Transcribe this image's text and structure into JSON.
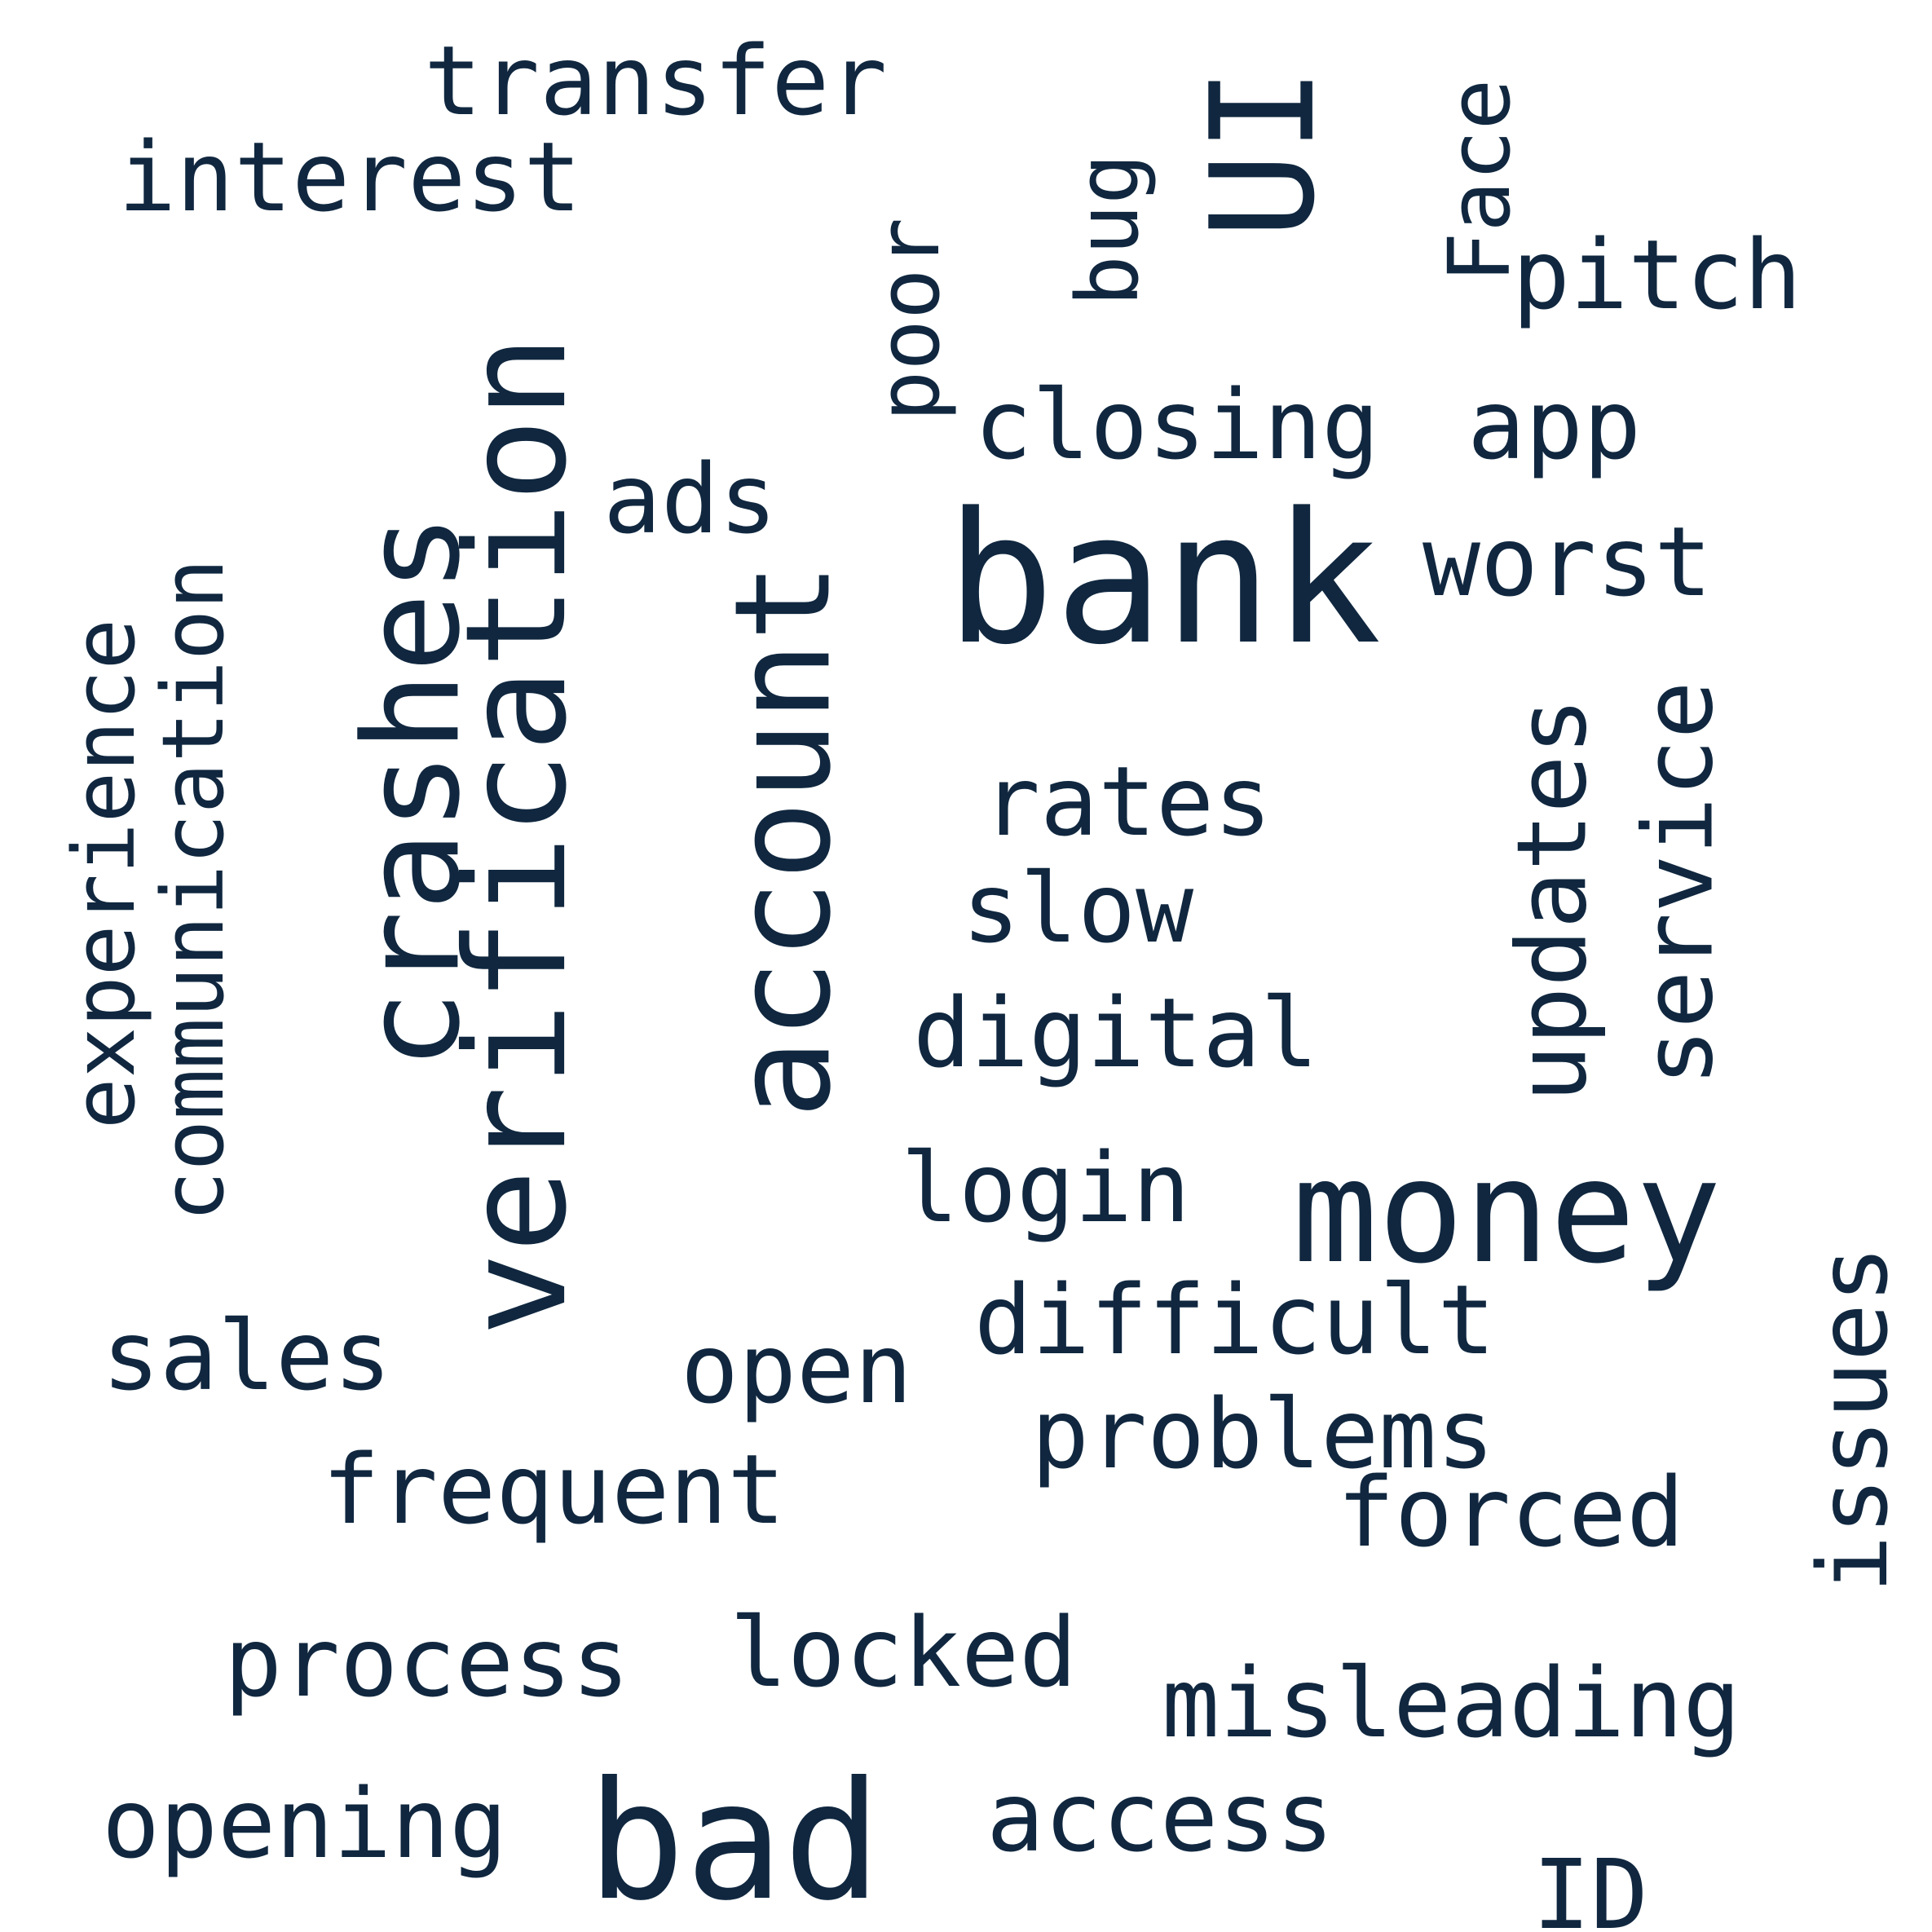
{
  "colors": {
    "text": "#10273f",
    "background": "#ffffff"
  },
  "words": [
    {
      "text": "bank",
      "weight": 100,
      "orientation": "horizontal"
    },
    {
      "text": "verification",
      "weight": 92,
      "orientation": "vertical"
    },
    {
      "text": "account",
      "weight": 88,
      "orientation": "vertical"
    },
    {
      "text": "crashes",
      "weight": 86,
      "orientation": "vertical"
    },
    {
      "text": "money",
      "weight": 80,
      "orientation": "horizontal"
    },
    {
      "text": "bad",
      "weight": 80,
      "orientation": "horizontal"
    },
    {
      "text": "UI",
      "weight": 78,
      "orientation": "vertical"
    },
    {
      "text": "experience",
      "weight": 55,
      "orientation": "vertical"
    },
    {
      "text": "communication",
      "weight": 55,
      "orientation": "vertical"
    },
    {
      "text": "transfer",
      "weight": 55,
      "orientation": "horizontal"
    },
    {
      "text": "interest",
      "weight": 55,
      "orientation": "horizontal"
    },
    {
      "text": "poor",
      "weight": 55,
      "orientation": "vertical"
    },
    {
      "text": "bug",
      "weight": 55,
      "orientation": "vertical"
    },
    {
      "text": "Face",
      "weight": 55,
      "orientation": "vertical"
    },
    {
      "text": "pitch",
      "weight": 55,
      "orientation": "horizontal"
    },
    {
      "text": "closing",
      "weight": 55,
      "orientation": "horizontal"
    },
    {
      "text": "app",
      "weight": 55,
      "orientation": "horizontal"
    },
    {
      "text": "ads",
      "weight": 55,
      "orientation": "horizontal"
    },
    {
      "text": "worst",
      "weight": 55,
      "orientation": "horizontal"
    },
    {
      "text": "rates",
      "weight": 55,
      "orientation": "horizontal"
    },
    {
      "text": "slow",
      "weight": 55,
      "orientation": "horizontal"
    },
    {
      "text": "updates",
      "weight": 55,
      "orientation": "vertical"
    },
    {
      "text": "service",
      "weight": 55,
      "orientation": "vertical"
    },
    {
      "text": "digital",
      "weight": 55,
      "orientation": "horizontal"
    },
    {
      "text": "login",
      "weight": 55,
      "orientation": "horizontal"
    },
    {
      "text": "issues",
      "weight": 55,
      "orientation": "vertical"
    },
    {
      "text": "difficult",
      "weight": 55,
      "orientation": "horizontal"
    },
    {
      "text": "sales",
      "weight": 55,
      "orientation": "horizontal"
    },
    {
      "text": "open",
      "weight": 55,
      "orientation": "horizontal"
    },
    {
      "text": "problems",
      "weight": 55,
      "orientation": "horizontal"
    },
    {
      "text": "frequent",
      "weight": 55,
      "orientation": "horizontal"
    },
    {
      "text": "forced",
      "weight": 55,
      "orientation": "horizontal"
    },
    {
      "text": "process",
      "weight": 55,
      "orientation": "horizontal"
    },
    {
      "text": "locked",
      "weight": 55,
      "orientation": "horizontal"
    },
    {
      "text": "misleading",
      "weight": 55,
      "orientation": "horizontal"
    },
    {
      "text": "opening",
      "weight": 55,
      "orientation": "horizontal"
    },
    {
      "text": "access",
      "weight": 55,
      "orientation": "horizontal"
    },
    {
      "text": "ID",
      "weight": 55,
      "orientation": "horizontal"
    }
  ]
}
